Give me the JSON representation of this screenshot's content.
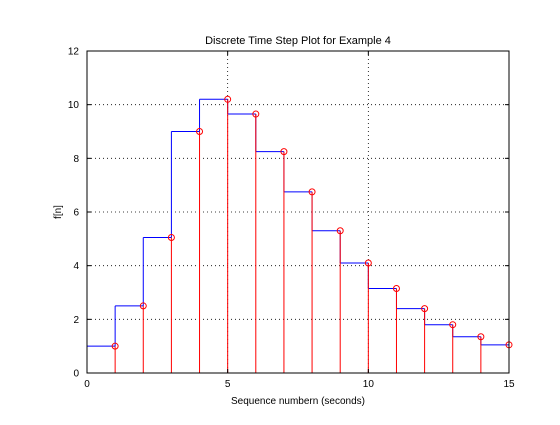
{
  "chart_data": {
    "type": "line",
    "title": "Discrete Time Step Plot for Example 4",
    "xlabel": "Sequence numbern (seconds)",
    "ylabel": "f[n]",
    "xlim": [
      0,
      15
    ],
    "ylim": [
      0,
      12
    ],
    "xticks": [
      0,
      5,
      10,
      15
    ],
    "yticks": [
      0,
      2,
      4,
      6,
      8,
      10,
      12
    ],
    "grid": true,
    "series": [
      {
        "style": "stairs",
        "color": "#0000ff",
        "x": [
          0,
          1,
          2,
          3,
          4,
          5,
          6,
          7,
          8,
          9,
          10,
          11,
          12,
          13,
          14,
          15
        ],
        "values": [
          1.0,
          2.5,
          5.05,
          9.0,
          10.2,
          9.65,
          8.25,
          6.75,
          5.3,
          4.1,
          3.15,
          2.4,
          1.8,
          1.35,
          1.05,
          1.05
        ]
      },
      {
        "style": "stem",
        "color": "#ff0000",
        "marker": "circle",
        "x": [
          1,
          2,
          3,
          4,
          5,
          6,
          7,
          8,
          9,
          10,
          11,
          12,
          13,
          14,
          15
        ],
        "values": [
          1.0,
          2.5,
          5.05,
          9.0,
          10.2,
          9.65,
          8.25,
          6.75,
          5.3,
          4.1,
          3.15,
          2.4,
          1.8,
          1.35,
          1.05
        ]
      }
    ]
  }
}
